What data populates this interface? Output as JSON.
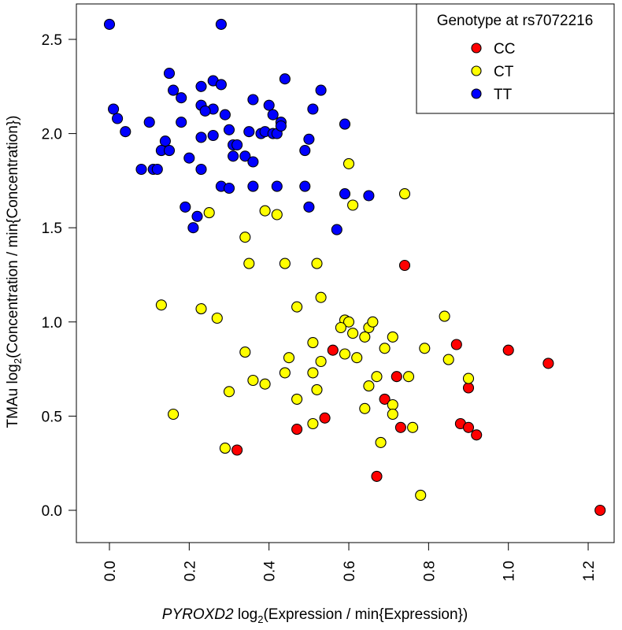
{
  "chart_data": {
    "type": "scatter",
    "title": "",
    "xlabel": {
      "italic": "PYROXD2",
      "prefix": " log",
      "sub": "2",
      "suffix": "(Expression / min{Expression})"
    },
    "ylabel": {
      "prefix": "TMAu log",
      "sub": "2",
      "suffix": "(Concentration / min{Concentration})"
    },
    "xlim": [
      0.0,
      1.2
    ],
    "ylim": [
      0.0,
      2.5
    ],
    "xticks": [
      "0.0",
      "0.2",
      "0.4",
      "0.6",
      "0.8",
      "1.0",
      "1.2"
    ],
    "yticks": [
      "0.0",
      "0.5",
      "1.0",
      "1.5",
      "2.0",
      "2.5"
    ],
    "grid": false,
    "legend": {
      "title": "Genotype at rs7072216",
      "placement": "top-right",
      "entries": [
        {
          "label": "CC",
          "color": "#ff0000"
        },
        {
          "label": "CT",
          "color": "#ffff00"
        },
        {
          "label": "TT",
          "color": "#0000ff"
        }
      ]
    },
    "series": [
      {
        "name": "CC",
        "color": "#ff0000",
        "points": [
          [
            0.74,
            1.3
          ],
          [
            0.56,
            0.85
          ],
          [
            0.87,
            0.88
          ],
          [
            1.0,
            0.85
          ],
          [
            1.1,
            0.78
          ],
          [
            0.72,
            0.71
          ],
          [
            0.69,
            0.59
          ],
          [
            0.9,
            0.65
          ],
          [
            0.54,
            0.49
          ],
          [
            0.47,
            0.43
          ],
          [
            0.73,
            0.44
          ],
          [
            0.88,
            0.46
          ],
          [
            0.9,
            0.44
          ],
          [
            0.92,
            0.4
          ],
          [
            0.32,
            0.32
          ],
          [
            0.67,
            0.18
          ],
          [
            1.23,
            0.0
          ]
        ]
      },
      {
        "name": "CT",
        "color": "#ffff00",
        "points": [
          [
            0.6,
            1.84
          ],
          [
            0.74,
            1.68
          ],
          [
            0.61,
            1.62
          ],
          [
            0.25,
            1.58
          ],
          [
            0.39,
            1.59
          ],
          [
            0.42,
            1.57
          ],
          [
            0.34,
            1.45
          ],
          [
            0.35,
            1.31
          ],
          [
            0.44,
            1.31
          ],
          [
            0.52,
            1.31
          ],
          [
            0.13,
            1.09
          ],
          [
            0.23,
            1.07
          ],
          [
            0.27,
            1.02
          ],
          [
            0.47,
            1.08
          ],
          [
            0.53,
            1.13
          ],
          [
            0.59,
            1.01
          ],
          [
            0.6,
            1.0
          ],
          [
            0.58,
            0.97
          ],
          [
            0.61,
            0.94
          ],
          [
            0.65,
            0.97
          ],
          [
            0.66,
            1.0
          ],
          [
            0.64,
            0.92
          ],
          [
            0.71,
            0.92
          ],
          [
            0.84,
            1.03
          ],
          [
            0.51,
            0.89
          ],
          [
            0.69,
            0.86
          ],
          [
            0.79,
            0.86
          ],
          [
            0.34,
            0.84
          ],
          [
            0.45,
            0.81
          ],
          [
            0.53,
            0.79
          ],
          [
            0.59,
            0.83
          ],
          [
            0.62,
            0.81
          ],
          [
            0.85,
            0.8
          ],
          [
            0.67,
            0.71
          ],
          [
            0.75,
            0.71
          ],
          [
            0.9,
            0.7
          ],
          [
            0.36,
            0.69
          ],
          [
            0.39,
            0.67
          ],
          [
            0.44,
            0.73
          ],
          [
            0.51,
            0.73
          ],
          [
            0.65,
            0.66
          ],
          [
            0.3,
            0.63
          ],
          [
            0.52,
            0.64
          ],
          [
            0.47,
            0.59
          ],
          [
            0.71,
            0.56
          ],
          [
            0.16,
            0.51
          ],
          [
            0.64,
            0.54
          ],
          [
            0.71,
            0.51
          ],
          [
            0.51,
            0.46
          ],
          [
            0.76,
            0.44
          ],
          [
            0.29,
            0.33
          ],
          [
            0.68,
            0.36
          ],
          [
            0.78,
            0.08
          ]
        ]
      },
      {
        "name": "TT",
        "color": "#0000ff",
        "points": [
          [
            0.0,
            2.58
          ],
          [
            0.28,
            2.58
          ],
          [
            0.15,
            2.32
          ],
          [
            0.44,
            2.29
          ],
          [
            0.53,
            2.23
          ],
          [
            0.16,
            2.23
          ],
          [
            0.23,
            2.25
          ],
          [
            0.26,
            2.28
          ],
          [
            0.28,
            2.26
          ],
          [
            0.18,
            2.19
          ],
          [
            0.23,
            2.15
          ],
          [
            0.26,
            2.13
          ],
          [
            0.24,
            2.12
          ],
          [
            0.29,
            2.1
          ],
          [
            0.36,
            2.18
          ],
          [
            0.4,
            2.15
          ],
          [
            0.41,
            2.1
          ],
          [
            0.51,
            2.13
          ],
          [
            0.01,
            2.13
          ],
          [
            0.02,
            2.08
          ],
          [
            0.1,
            2.06
          ],
          [
            0.18,
            2.06
          ],
          [
            0.43,
            2.06
          ],
          [
            0.59,
            2.05
          ],
          [
            0.04,
            2.01
          ],
          [
            0.3,
            2.02
          ],
          [
            0.35,
            2.01
          ],
          [
            0.38,
            2.0
          ],
          [
            0.39,
            2.01
          ],
          [
            0.41,
            2.0
          ],
          [
            0.42,
            2.0
          ],
          [
            0.43,
            2.04
          ],
          [
            0.23,
            1.98
          ],
          [
            0.26,
            1.99
          ],
          [
            0.5,
            1.97
          ],
          [
            0.14,
            1.96
          ],
          [
            0.31,
            1.94
          ],
          [
            0.32,
            1.94
          ],
          [
            0.34,
            1.88
          ],
          [
            0.13,
            1.91
          ],
          [
            0.15,
            1.91
          ],
          [
            0.49,
            1.91
          ],
          [
            0.2,
            1.87
          ],
          [
            0.31,
            1.88
          ],
          [
            0.36,
            1.85
          ],
          [
            0.08,
            1.81
          ],
          [
            0.11,
            1.81
          ],
          [
            0.12,
            1.81
          ],
          [
            0.23,
            1.81
          ],
          [
            0.28,
            1.72
          ],
          [
            0.3,
            1.71
          ],
          [
            0.36,
            1.72
          ],
          [
            0.42,
            1.72
          ],
          [
            0.49,
            1.72
          ],
          [
            0.59,
            1.68
          ],
          [
            0.65,
            1.67
          ],
          [
            0.19,
            1.61
          ],
          [
            0.5,
            1.61
          ],
          [
            0.22,
            1.56
          ],
          [
            0.21,
            1.5
          ],
          [
            0.57,
            1.49
          ]
        ]
      }
    ]
  }
}
